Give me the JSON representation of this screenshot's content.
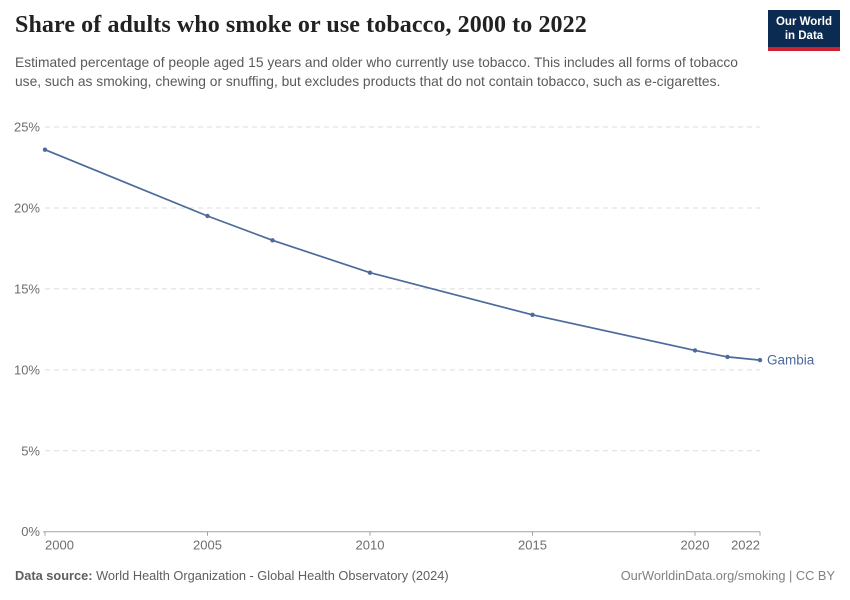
{
  "header": {
    "title": "Share of adults who smoke or use tobacco, 2000 to 2022",
    "subtitle": "Estimated percentage of people aged 15 years and older who currently use tobacco. This includes all forms of tobacco use, such as smoking, chewing or snuffing, but excludes products that do not contain tobacco, such as e-cigarettes."
  },
  "logo": {
    "line1": "Our World",
    "line2": "in Data",
    "bg_color": "#0c2b52",
    "accent_color": "#cc2233"
  },
  "chart_data": {
    "type": "line",
    "title": "Share of adults who smoke or use tobacco, 2000 to 2022",
    "x": [
      2000,
      2005,
      2007,
      2010,
      2015,
      2020,
      2021,
      2022
    ],
    "series": [
      {
        "name": "Gambia",
        "color": "#4c6a9c",
        "values": [
          23.6,
          19.5,
          18.0,
          16.0,
          13.4,
          11.2,
          10.8,
          10.6
        ]
      }
    ],
    "end_label": "Gambia",
    "xlim": [
      2000,
      2022
    ],
    "ylim": [
      0,
      25
    ],
    "xticks": [
      2000,
      2005,
      2010,
      2015,
      2020,
      2022
    ],
    "yticks": [
      0,
      5,
      10,
      15,
      20,
      25
    ],
    "ytick_suffix": "%",
    "grid": "horizontal-dashed",
    "legend_position": "end-of-line",
    "xlabel": "",
    "ylabel": ""
  },
  "footer": {
    "source_label": "Data source:",
    "source_text": " World Health Organization - Global Health Observatory (2024)",
    "link_text": "OurWorldinData.org/smoking | CC BY"
  },
  "colors": {
    "line": "#4c6a9c",
    "grid": "#dcdcdc",
    "axis": "#a3a3a3",
    "tick_text": "#6e6e6e",
    "title_text": "#222222",
    "subtitle_text": "#5a5a5a"
  }
}
